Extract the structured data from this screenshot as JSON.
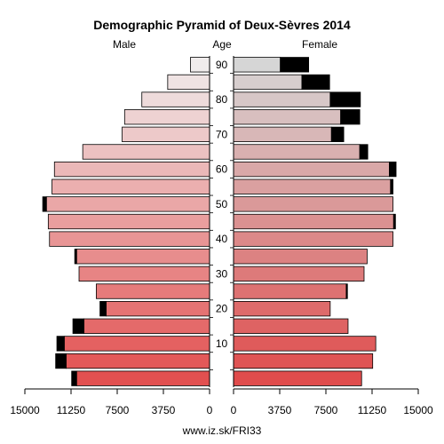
{
  "chart_data": {
    "type": "bar",
    "orientation": "population-pyramid",
    "title": "Demographic Pyramid of Deux-Sèvres 2014",
    "left_label": "Male",
    "center_label": "Age",
    "right_label": "Female",
    "footer": "www.iz.sk/FRI33",
    "age_ticks": [
      "10",
      "20",
      "30",
      "40",
      "50",
      "60",
      "70",
      "80",
      "90"
    ],
    "x_ticks_left": [
      "15000",
      "11250",
      "7500",
      "3750",
      "0"
    ],
    "x_ticks_right": [
      "0",
      "3750",
      "7500",
      "11250",
      "15000"
    ],
    "xlim": [
      0,
      15000
    ],
    "categories": [
      "0-4",
      "5-9",
      "10-14",
      "15-19",
      "20-24",
      "25-29",
      "30-34",
      "35-39",
      "40-44",
      "45-49",
      "50-54",
      "55-59",
      "60-64",
      "65-69",
      "70-74",
      "75-79",
      "80-84",
      "85-89",
      "90+"
    ],
    "series": [
      {
        "name": "Male",
        "values": [
          10800,
          11650,
          11800,
          10200,
          8400,
          9200,
          10600,
          10800,
          13000,
          13100,
          13250,
          12800,
          12600,
          10300,
          7100,
          6900,
          5500,
          3400,
          1550
        ],
        "excess": [
          400,
          850,
          600,
          900,
          500,
          0,
          0,
          150,
          0,
          0,
          300,
          0,
          0,
          0,
          0,
          0,
          0,
          0,
          0
        ]
      },
      {
        "name": "Female",
        "values": [
          10400,
          11300,
          11550,
          9300,
          7850,
          9150,
          10600,
          10850,
          12950,
          13000,
          12950,
          12750,
          12650,
          10250,
          7950,
          8700,
          7850,
          5550,
          3800
        ],
        "excess": [
          0,
          0,
          0,
          0,
          0,
          100,
          0,
          0,
          0,
          150,
          0,
          200,
          550,
          650,
          1000,
          1550,
          2450,
          2250,
          2300
        ]
      }
    ]
  }
}
